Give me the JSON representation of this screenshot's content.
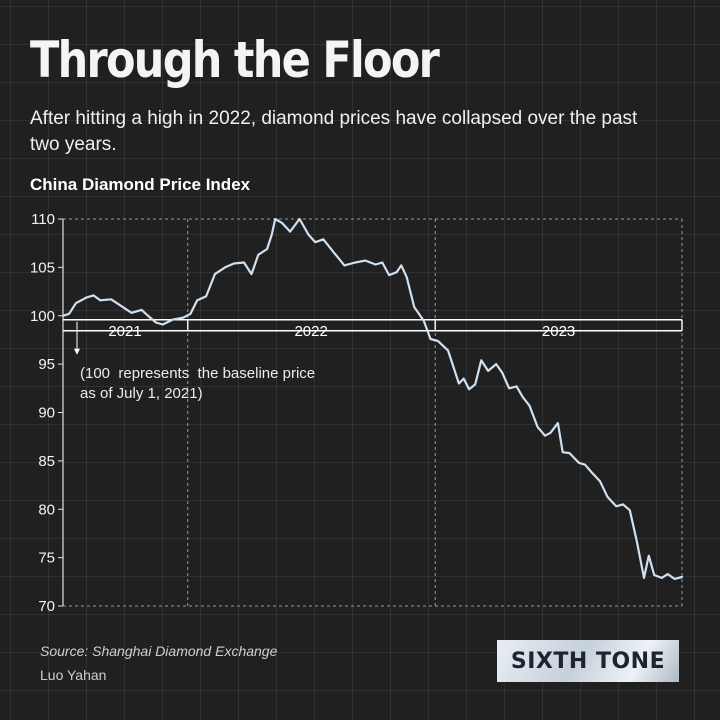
{
  "header": {
    "title": "Through the Floor",
    "subtitle": "After hitting a high in 2022, diamond prices have collapsed over the past two years."
  },
  "chart_data": {
    "type": "line",
    "title": "China Diamond Price Index",
    "annotation": "(100  represents  the baseline price as of July 1, 2021)",
    "annotation_lines": [
      "(100  represents  the baseline price",
      "as of July 1, 2021)"
    ],
    "xlabel": "",
    "ylabel": "",
    "ylim": [
      70,
      110
    ],
    "yticks": [
      110,
      105,
      100,
      95,
      90,
      85,
      80,
      75,
      70
    ],
    "xlim": [
      "2021-07-01",
      "2023-12-31"
    ],
    "year_labels": [
      {
        "label": "2021",
        "start": "2021-07-01",
        "end": "2021-12-31"
      },
      {
        "label": "2022",
        "start": "2022-01-01",
        "end": "2022-12-31"
      },
      {
        "label": "2023",
        "start": "2023-01-01",
        "end": "2023-12-31"
      }
    ],
    "grid": {
      "x": true,
      "y": false
    },
    "line_color": "#cfe0f0",
    "series": [
      {
        "values": [
          [
            "2021-07-01",
            100.0
          ],
          [
            "2021-07-10",
            100.2
          ],
          [
            "2021-07-20",
            101.3
          ],
          [
            "2021-08-05",
            101.9
          ],
          [
            "2021-08-15",
            102.1
          ],
          [
            "2021-08-25",
            101.6
          ],
          [
            "2021-09-10",
            101.7
          ],
          [
            "2021-09-25",
            101.0
          ],
          [
            "2021-10-10",
            100.3
          ],
          [
            "2021-10-25",
            100.6
          ],
          [
            "2021-11-05",
            99.9
          ],
          [
            "2021-11-15",
            99.3
          ],
          [
            "2021-11-25",
            99.1
          ],
          [
            "2021-12-10",
            99.6
          ],
          [
            "2021-12-25",
            99.8
          ],
          [
            "2022-01-05",
            100.2
          ],
          [
            "2022-01-15",
            101.6
          ],
          [
            "2022-01-28",
            102.0
          ],
          [
            "2022-02-10",
            104.3
          ],
          [
            "2022-02-25",
            105.0
          ],
          [
            "2022-03-10",
            105.4
          ],
          [
            "2022-03-25",
            105.5
          ],
          [
            "2022-04-05",
            104.3
          ],
          [
            "2022-04-15",
            106.3
          ],
          [
            "2022-04-28",
            106.9
          ],
          [
            "2022-05-05",
            108.4
          ],
          [
            "2022-05-10",
            110.0
          ],
          [
            "2022-05-20",
            109.6
          ],
          [
            "2022-06-01",
            108.7
          ],
          [
            "2022-06-15",
            110.0
          ],
          [
            "2022-06-28",
            108.4
          ],
          [
            "2022-07-08",
            107.6
          ],
          [
            "2022-07-20",
            107.9
          ],
          [
            "2022-08-05",
            106.5
          ],
          [
            "2022-08-20",
            105.2
          ],
          [
            "2022-09-05",
            105.5
          ],
          [
            "2022-09-20",
            105.7
          ],
          [
            "2022-10-05",
            105.3
          ],
          [
            "2022-10-15",
            105.5
          ],
          [
            "2022-10-25",
            104.2
          ],
          [
            "2022-11-05",
            104.5
          ],
          [
            "2022-11-12",
            105.2
          ],
          [
            "2022-11-20",
            104.0
          ],
          [
            "2022-12-01",
            100.9
          ],
          [
            "2022-12-15",
            99.5
          ],
          [
            "2022-12-25",
            97.6
          ],
          [
            "2023-01-05",
            97.4
          ],
          [
            "2023-01-20",
            96.4
          ],
          [
            "2023-02-05",
            93.0
          ],
          [
            "2023-02-12",
            93.5
          ],
          [
            "2023-02-20",
            92.4
          ],
          [
            "2023-03-01",
            92.9
          ],
          [
            "2023-03-10",
            95.4
          ],
          [
            "2023-03-20",
            94.3
          ],
          [
            "2023-04-01",
            95.0
          ],
          [
            "2023-04-10",
            94.1
          ],
          [
            "2023-04-20",
            92.5
          ],
          [
            "2023-05-01",
            92.7
          ],
          [
            "2023-05-10",
            91.6
          ],
          [
            "2023-05-20",
            90.7
          ],
          [
            "2023-06-01",
            88.5
          ],
          [
            "2023-06-12",
            87.6
          ],
          [
            "2023-06-20",
            87.9
          ],
          [
            "2023-07-01",
            88.9
          ],
          [
            "2023-07-08",
            85.9
          ],
          [
            "2023-07-18",
            85.8
          ],
          [
            "2023-08-01",
            84.8
          ],
          [
            "2023-08-10",
            84.6
          ],
          [
            "2023-08-20",
            83.8
          ],
          [
            "2023-09-01",
            82.9
          ],
          [
            "2023-09-12",
            81.3
          ],
          [
            "2023-09-25",
            80.3
          ],
          [
            "2023-10-05",
            80.5
          ],
          [
            "2023-10-15",
            79.9
          ],
          [
            "2023-10-25",
            76.8
          ],
          [
            "2023-11-05",
            72.9
          ],
          [
            "2023-11-12",
            75.2
          ],
          [
            "2023-11-20",
            73.2
          ],
          [
            "2023-12-01",
            72.9
          ],
          [
            "2023-12-10",
            73.3
          ],
          [
            "2023-12-20",
            72.8
          ],
          [
            "2023-12-31",
            73.0
          ]
        ]
      }
    ]
  },
  "footer": {
    "source": "Source: Shanghai Diamond Exchange",
    "author": "Luo Yahan",
    "logo": "SIXTH TONE"
  }
}
